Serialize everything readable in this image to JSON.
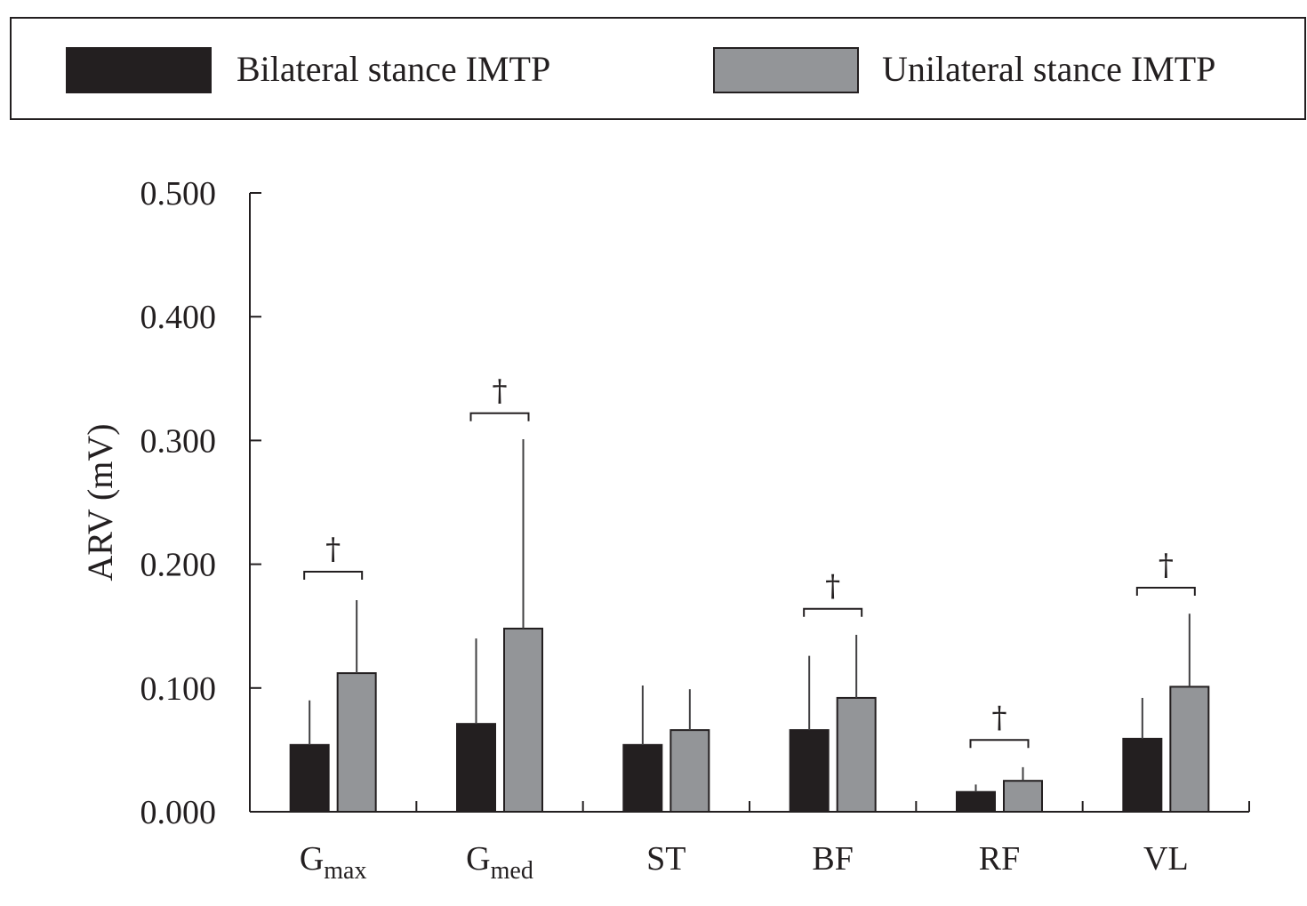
{
  "chart_data": {
    "type": "bar",
    "categories": [
      {
        "main": "G",
        "sub": "max"
      },
      {
        "main": "G",
        "sub": "med"
      },
      {
        "main": "ST",
        "sub": ""
      },
      {
        "main": "BF",
        "sub": ""
      },
      {
        "main": "RF",
        "sub": ""
      },
      {
        "main": "VL",
        "sub": ""
      }
    ],
    "series": [
      {
        "name": "Bilateral stance IMTP",
        "color": "#231f20",
        "values": [
          0.054,
          0.071,
          0.054,
          0.066,
          0.016,
          0.059
        ],
        "errors": [
          0.036,
          0.069,
          0.048,
          0.06,
          0.006,
          0.033
        ]
      },
      {
        "name": "Unilateral stance IMTP",
        "color": "#939598",
        "values": [
          0.112,
          0.148,
          0.066,
          0.092,
          0.025,
          0.101
        ],
        "errors": [
          0.059,
          0.153,
          0.033,
          0.051,
          0.011,
          0.059
        ]
      }
    ],
    "ylabel": "ARV (mV)",
    "xlabel": "",
    "title": "",
    "ylim": [
      0,
      0.5
    ],
    "yticks": [
      "0.000",
      "0.100",
      "0.200",
      "0.300",
      "0.400",
      "0.500"
    ],
    "significance": {
      "symbol": "†",
      "categories": [
        0,
        1,
        3,
        4,
        5
      ],
      "bracket_levels": [
        0.194,
        0.322,
        0.164,
        0.058,
        0.181
      ]
    },
    "legend_placement": "top, boxed",
    "grid": false
  }
}
